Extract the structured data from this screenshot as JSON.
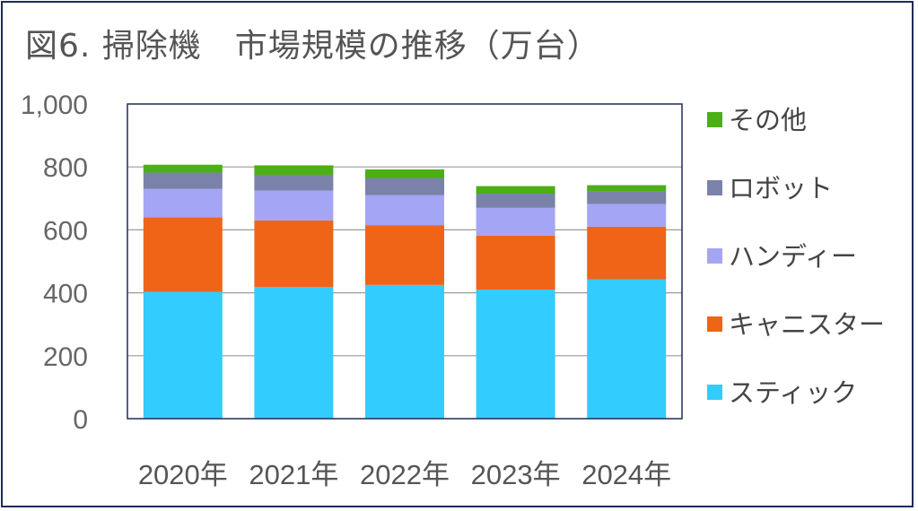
{
  "chart_data": {
    "type": "bar",
    "stacked": true,
    "title": "図6. 掃除機　市場規模の推移（万台）",
    "categories": [
      "2020年",
      "2021年",
      "2022年",
      "2023年",
      "2024年"
    ],
    "series": [
      {
        "name": "スティック",
        "color": "#33ccff",
        "values": [
          403,
          418,
          425,
          410,
          443
        ]
      },
      {
        "name": "キャニスター",
        "color": "#f06418",
        "values": [
          237,
          212,
          190,
          172,
          167
        ]
      },
      {
        "name": "ハンディー",
        "color": "#a5a5f5",
        "values": [
          90,
          95,
          95,
          88,
          72
        ]
      },
      {
        "name": "ロボット",
        "color": "#7a82aa",
        "values": [
          52,
          50,
          55,
          45,
          40
        ]
      },
      {
        "name": "その他",
        "color": "#4caf14",
        "values": [
          25,
          30,
          27,
          24,
          20
        ]
      }
    ],
    "ylim": [
      0,
      1000
    ],
    "yticks": [
      0,
      200,
      400,
      600,
      800,
      1000
    ],
    "ytick_labels": [
      "0",
      "200",
      "400",
      "600",
      "800",
      "1,000"
    ],
    "grid": true,
    "legend_position": "right",
    "legend_order": [
      "その他",
      "ロボット",
      "ハンディー",
      "キャニスター",
      "スティック"
    ]
  }
}
